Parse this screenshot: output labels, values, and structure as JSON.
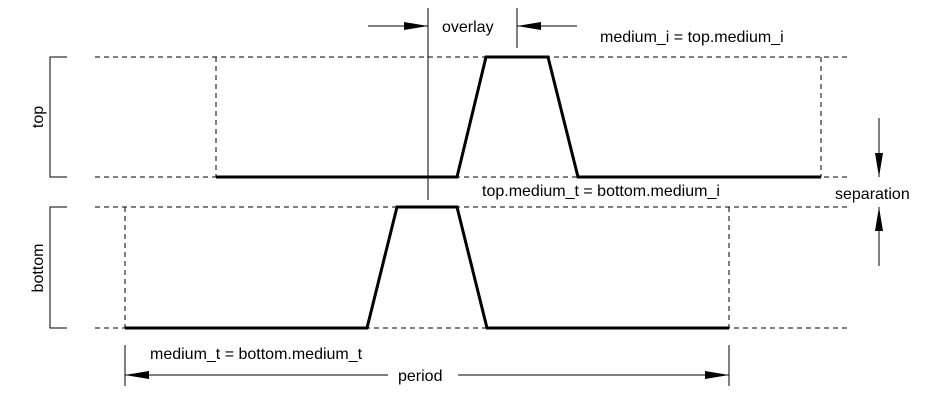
{
  "labels": {
    "top": "top",
    "bottom": "bottom",
    "overlay": "overlay",
    "separation": "separation",
    "period": "period",
    "medium_i_eq": "medium_i = top.medium_i",
    "interface_eq": "top.medium_t = bottom.medium_i",
    "medium_t_eq": "medium_t = bottom.medium_t"
  }
}
